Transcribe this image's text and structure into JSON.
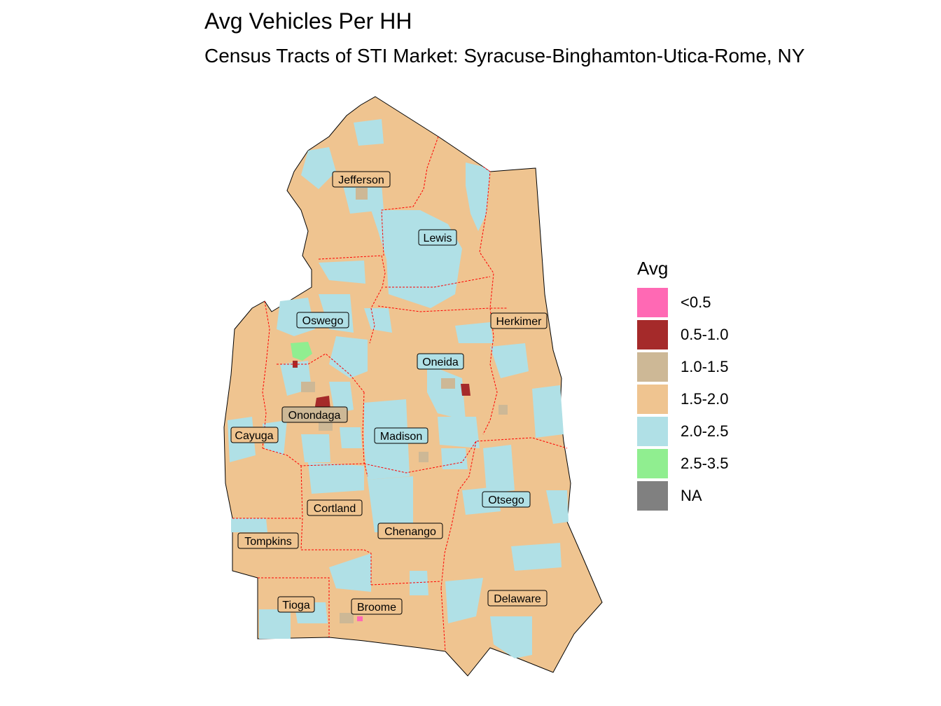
{
  "title": "Avg Vehicles Per HH",
  "subtitle": "Census Tracts of STI Market: Syracuse-Binghamton-Utica-Rome, NY",
  "legend": {
    "title": "Avg",
    "items": [
      {
        "label": "<0.5",
        "color": "#ff69b4"
      },
      {
        "label": "0.5-1.0",
        "color": "#a52a2a"
      },
      {
        "label": "1.0-1.5",
        "color": "#cdb896"
      },
      {
        "label": "1.5-2.0",
        "color": "#efc490"
      },
      {
        "label": "2.0-2.5",
        "color": "#b0e0e6"
      },
      {
        "label": "2.5-3.5",
        "color": "#90ee90"
      },
      {
        "label": "NA",
        "color": "#808080"
      }
    ]
  },
  "counties": [
    "Jefferson",
    "Lewis",
    "Herkimer",
    "Oswego",
    "Oneida",
    "Onondaga",
    "Cayuga",
    "Madison",
    "Cortland",
    "Otsego",
    "Chenango",
    "Tompkins",
    "Tioga",
    "Broome",
    "Delaware"
  ]
}
